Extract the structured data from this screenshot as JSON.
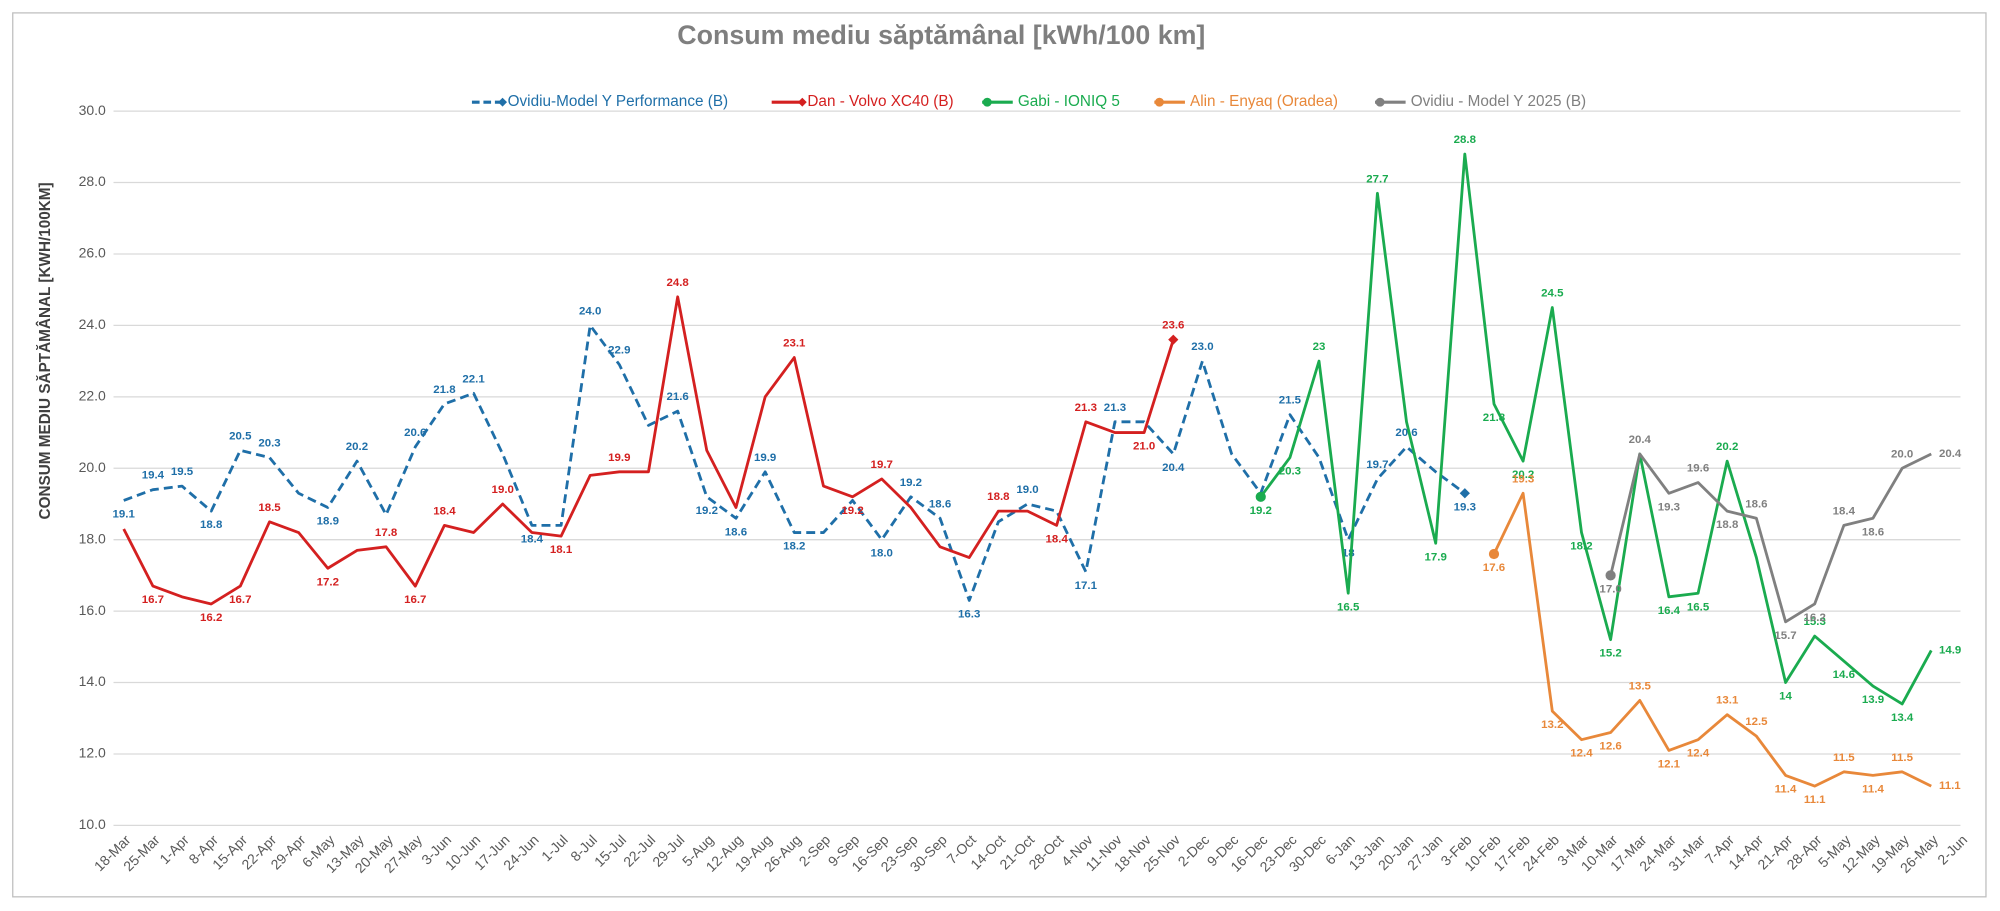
{
  "chart_data": {
    "type": "line",
    "title": "Consum mediu săptămânal [kWh/100 km]",
    "y_label": "CONSUM MEDIU SĂPTĂMÂNAL [KWH/100KM]",
    "categories": [
      "18-Mar",
      "25-Mar",
      "1-Apr",
      "8-Apr",
      "15-Apr",
      "22-Apr",
      "29-Apr",
      "6-May",
      "13-May",
      "20-May",
      "27-May",
      "3-Jun",
      "10-Jun",
      "17-Jun",
      "24-Jun",
      "1-Jul",
      "8-Jul",
      "15-Jul",
      "22-Jul",
      "29-Jul",
      "5-Aug",
      "12-Aug",
      "19-Aug",
      "26-Aug",
      "2-Sep",
      "9-Sep",
      "16-Sep",
      "23-Sep",
      "30-Sep",
      "7-Oct",
      "14-Oct",
      "21-Oct",
      "28-Oct",
      "4-Nov",
      "11-Nov",
      "18-Nov",
      "25-Nov",
      "2-Dec",
      "9-Dec",
      "16-Dec",
      "23-Dec",
      "30-Dec",
      "6-Jan",
      "13-Jan",
      "20-Jan",
      "27-Jan",
      "3-Feb",
      "10-Feb",
      "17-Feb",
      "24-Feb",
      "3-Mar",
      "10-Mar",
      "17-Mar",
      "24-Mar",
      "31-Mar",
      "7-Apr",
      "14-Apr",
      "21-Apr",
      "28-Apr",
      "5-May",
      "12-May",
      "19-May",
      "26-May",
      "2-Jun"
    ],
    "ylim": [
      10,
      30
    ],
    "yticks": [
      {
        "value": 10,
        "label": "10.0"
      },
      {
        "value": 12,
        "label": "12.0"
      },
      {
        "value": 14,
        "label": "14.0"
      },
      {
        "value": 16,
        "label": "16.0"
      },
      {
        "value": 18,
        "label": "18.0"
      },
      {
        "value": 20,
        "label": "20.0"
      },
      {
        "value": 22,
        "label": "22.0"
      },
      {
        "value": 24,
        "label": "24.0"
      },
      {
        "value": 26,
        "label": "26.0"
      },
      {
        "value": 28,
        "label": "28.0"
      },
      {
        "value": 30,
        "label": "30.0"
      }
    ],
    "grid": true,
    "legend": "top",
    "series": [
      {
        "name": "Ovidiu-Model Y Performance (B)",
        "color": "#1f6fa8",
        "line_style": "dashed",
        "marker": "diamond-end",
        "values": [
          19.1,
          19.4,
          19.5,
          18.8,
          20.5,
          20.3,
          19.3,
          18.9,
          20.2,
          18.7,
          20.6,
          21.8,
          22.1,
          20.4,
          18.4,
          18.4,
          24.0,
          22.9,
          21.2,
          21.6,
          19.2,
          18.6,
          19.9,
          18.2,
          18.2,
          19.1,
          18.0,
          19.2,
          18.6,
          16.3,
          18.5,
          19.0,
          18.8,
          17.1,
          21.3,
          21.3,
          20.4,
          23.0,
          20.4,
          19.3,
          21.5,
          20.3,
          18,
          19.7,
          20.6,
          19.9,
          19.3,
          null,
          null,
          null,
          null,
          null,
          null,
          null,
          null,
          null,
          null,
          null,
          null,
          null,
          null,
          null,
          null,
          null
        ],
        "value_labels": [
          "19.1",
          "19.4",
          "19.5",
          "18.8",
          "20.5",
          "20.3",
          null,
          "18.9",
          "20.2",
          null,
          "20.6",
          "21.8",
          "22.1",
          null,
          "18.4",
          null,
          "24.0",
          "22.9",
          null,
          "21.6",
          "19.2",
          "18.6",
          "19.9",
          "18.2",
          null,
          null,
          "18.0",
          "19.2",
          "18.6",
          "16.3",
          null,
          "19.0",
          null,
          "17.1",
          "21.3",
          null,
          "20.4",
          "23.0",
          null,
          null,
          "21.5",
          null,
          "18",
          "19.7",
          "20.6",
          null,
          "19.3",
          null,
          null,
          null,
          null,
          null,
          null,
          null,
          null,
          null,
          null,
          null,
          null,
          null,
          null,
          null,
          null,
          null
        ]
      },
      {
        "name": "Dan - Volvo XC40 (B)",
        "color": "#d42020",
        "line_style": "solid",
        "marker": "diamond-end",
        "values": [
          18.3,
          16.7,
          16.4,
          16.2,
          16.7,
          18.5,
          18.2,
          17.2,
          17.7,
          17.8,
          16.7,
          18.4,
          18.2,
          19.0,
          18.2,
          18.1,
          19.8,
          19.9,
          19.9,
          24.8,
          20.5,
          18.9,
          22.0,
          23.1,
          19.5,
          19.2,
          19.7,
          18.9,
          17.8,
          17.5,
          18.8,
          18.8,
          18.4,
          21.3,
          21.0,
          21.0,
          23.6,
          null,
          null,
          null,
          null,
          null,
          null,
          null,
          null,
          null,
          null,
          null,
          null,
          null,
          null,
          null,
          null,
          null,
          null,
          null,
          null,
          null,
          null,
          null,
          null,
          null,
          null,
          null
        ],
        "value_labels": [
          null,
          "16.7",
          null,
          "16.2",
          "16.7",
          "18.5",
          null,
          "17.2",
          null,
          "17.8",
          "16.7",
          "18.4",
          null,
          "19.0",
          null,
          "18.1",
          null,
          "19.9",
          null,
          "24.8",
          null,
          null,
          null,
          "23.1",
          null,
          "19.2",
          "19.7",
          null,
          null,
          null,
          "18.8",
          null,
          "18.4",
          "21.3",
          null,
          "21.0",
          "23.6",
          null,
          null,
          null,
          null,
          null,
          null,
          null,
          null,
          null,
          null,
          null,
          null,
          null,
          null,
          null,
          null,
          null,
          null,
          null,
          null,
          null,
          null,
          null,
          null,
          null,
          null,
          null
        ]
      },
      {
        "name": "Gabi - IONIQ 5",
        "color": "#1aab4f",
        "line_style": "solid",
        "marker": "circle-start",
        "values": [
          null,
          null,
          null,
          null,
          null,
          null,
          null,
          null,
          null,
          null,
          null,
          null,
          null,
          null,
          null,
          null,
          null,
          null,
          null,
          null,
          null,
          null,
          null,
          null,
          null,
          null,
          null,
          null,
          null,
          null,
          null,
          null,
          null,
          null,
          null,
          null,
          null,
          null,
          null,
          19.2,
          20.3,
          23,
          16.5,
          27.7,
          21.3,
          17.9,
          28.8,
          21.8,
          20.2,
          24.5,
          18.2,
          15.2,
          20.4,
          16.4,
          16.5,
          20.2,
          17.5,
          14,
          15.3,
          14.6,
          13.9,
          13.4,
          14.9,
          null
        ],
        "value_labels": [
          null,
          null,
          null,
          null,
          null,
          null,
          null,
          null,
          null,
          null,
          null,
          null,
          null,
          null,
          null,
          null,
          null,
          null,
          null,
          null,
          null,
          null,
          null,
          null,
          null,
          null,
          null,
          null,
          null,
          null,
          null,
          null,
          null,
          null,
          null,
          null,
          null,
          null,
          null,
          "19.2",
          "20.3",
          "23",
          "16.5",
          "27.7",
          null,
          "17.9",
          "28.8",
          "21.8",
          "20.2",
          "24.5",
          "18.2",
          "15.2",
          null,
          "16.4",
          "16.5",
          "20.2",
          null,
          "14",
          "15.3",
          "14.6",
          "13.9",
          "13.4",
          "14.9",
          null
        ]
      },
      {
        "name": "Alin - Enyaq (Oradea)",
        "color": "#e8883a",
        "line_style": "solid",
        "marker": "circle-start",
        "values": [
          null,
          null,
          null,
          null,
          null,
          null,
          null,
          null,
          null,
          null,
          null,
          null,
          null,
          null,
          null,
          null,
          null,
          null,
          null,
          null,
          null,
          null,
          null,
          null,
          null,
          null,
          null,
          null,
          null,
          null,
          null,
          null,
          null,
          null,
          null,
          null,
          null,
          null,
          null,
          null,
          null,
          null,
          null,
          null,
          null,
          null,
          null,
          17.6,
          19.3,
          13.2,
          12.4,
          12.6,
          13.5,
          12.1,
          12.4,
          13.1,
          12.5,
          11.4,
          11.1,
          11.5,
          11.4,
          11.5,
          11.1,
          null
        ],
        "value_labels": [
          null,
          null,
          null,
          null,
          null,
          null,
          null,
          null,
          null,
          null,
          null,
          null,
          null,
          null,
          null,
          null,
          null,
          null,
          null,
          null,
          null,
          null,
          null,
          null,
          null,
          null,
          null,
          null,
          null,
          null,
          null,
          null,
          null,
          null,
          null,
          null,
          null,
          null,
          null,
          null,
          null,
          null,
          null,
          null,
          null,
          null,
          null,
          "17.6",
          "19.3",
          "13.2",
          "12.4",
          "12.6",
          "13.5",
          "12.1",
          "12.4",
          "13.1",
          "12.5",
          "11.4",
          "11.1",
          "11.5",
          "11.4",
          "11.5",
          "11.1",
          null
        ]
      },
      {
        "name": "Ovidiu - Model Y 2025 (B)",
        "color": "#808080",
        "line_style": "solid",
        "marker": "circle-start",
        "values": [
          null,
          null,
          null,
          null,
          null,
          null,
          null,
          null,
          null,
          null,
          null,
          null,
          null,
          null,
          null,
          null,
          null,
          null,
          null,
          null,
          null,
          null,
          null,
          null,
          null,
          null,
          null,
          null,
          null,
          null,
          null,
          null,
          null,
          null,
          null,
          null,
          null,
          null,
          null,
          null,
          null,
          null,
          null,
          null,
          null,
          null,
          null,
          null,
          null,
          null,
          null,
          17.0,
          20.4,
          19.3,
          19.6,
          18.8,
          18.6,
          15.7,
          16.2,
          18.4,
          18.6,
          20.0,
          20.4,
          null
        ],
        "value_labels": [
          null,
          null,
          null,
          null,
          null,
          null,
          null,
          null,
          null,
          null,
          null,
          null,
          null,
          null,
          null,
          null,
          null,
          null,
          null,
          null,
          null,
          null,
          null,
          null,
          null,
          null,
          null,
          null,
          null,
          null,
          null,
          null,
          null,
          null,
          null,
          null,
          null,
          null,
          null,
          null,
          null,
          null,
          null,
          null,
          null,
          null,
          null,
          null,
          null,
          null,
          null,
          "17.0",
          "20.4",
          "19.3",
          "19.6",
          "18.8",
          "18.6",
          "15.7",
          "16.2",
          "18.4",
          "18.6",
          "20.0",
          "20.4",
          null
        ]
      }
    ]
  }
}
